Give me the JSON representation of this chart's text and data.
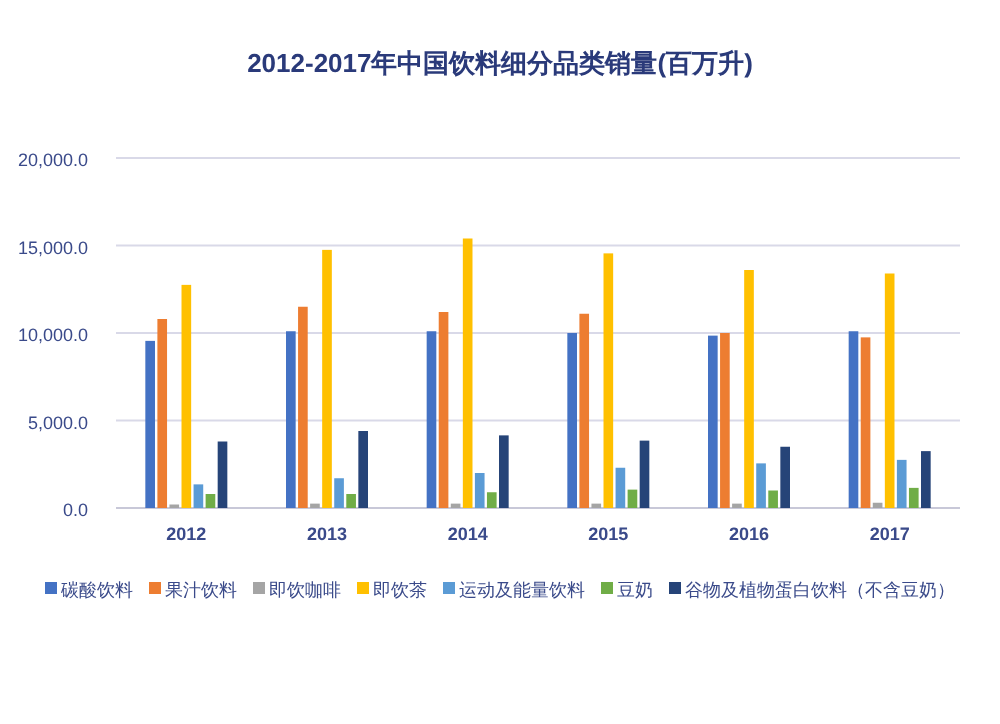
{
  "chart_data": {
    "type": "bar",
    "title": "2012-2017年中国饮料细分品类销量(百万升)",
    "categories": [
      "2012",
      "2013",
      "2014",
      "2015",
      "2016",
      "2017"
    ],
    "series": [
      {
        "name": "碳酸饮料",
        "color": "#4472c4",
        "values": [
          9550,
          10100,
          10100,
          10000,
          9850,
          10100
        ]
      },
      {
        "name": "果汁饮料",
        "color": "#ed7d31",
        "values": [
          10800,
          11500,
          11200,
          11100,
          10000,
          9750
        ]
      },
      {
        "name": "即饮咖啡",
        "color": "#a5a5a5",
        "values": [
          200,
          250,
          250,
          250,
          250,
          300
        ]
      },
      {
        "name": "即饮茶",
        "color": "#ffc000",
        "values": [
          12750,
          14750,
          15400,
          14550,
          13600,
          13400
        ]
      },
      {
        "name": "运动及能量饮料",
        "color": "#5b9bd5",
        "values": [
          1350,
          1700,
          2000,
          2300,
          2550,
          2750
        ]
      },
      {
        "name": "豆奶",
        "color": "#70ad47",
        "values": [
          800,
          800,
          900,
          1050,
          1000,
          1150
        ]
      },
      {
        "name": "谷物及植物蛋白饮料（不含豆奶）",
        "color": "#264478",
        "values": [
          3800,
          4400,
          4150,
          3850,
          3500,
          3250
        ]
      }
    ],
    "ylim": [
      0,
      20000
    ],
    "yticks": [
      {
        "value": 0,
        "label": "0.0"
      },
      {
        "value": 5000,
        "label": "5,000.0"
      },
      {
        "value": 10000,
        "label": "10,000.0"
      },
      {
        "value": 15000,
        "label": "15,000.0"
      },
      {
        "value": 20000,
        "label": "20,000.0"
      }
    ],
    "grid": "y",
    "legend": "bottom"
  }
}
